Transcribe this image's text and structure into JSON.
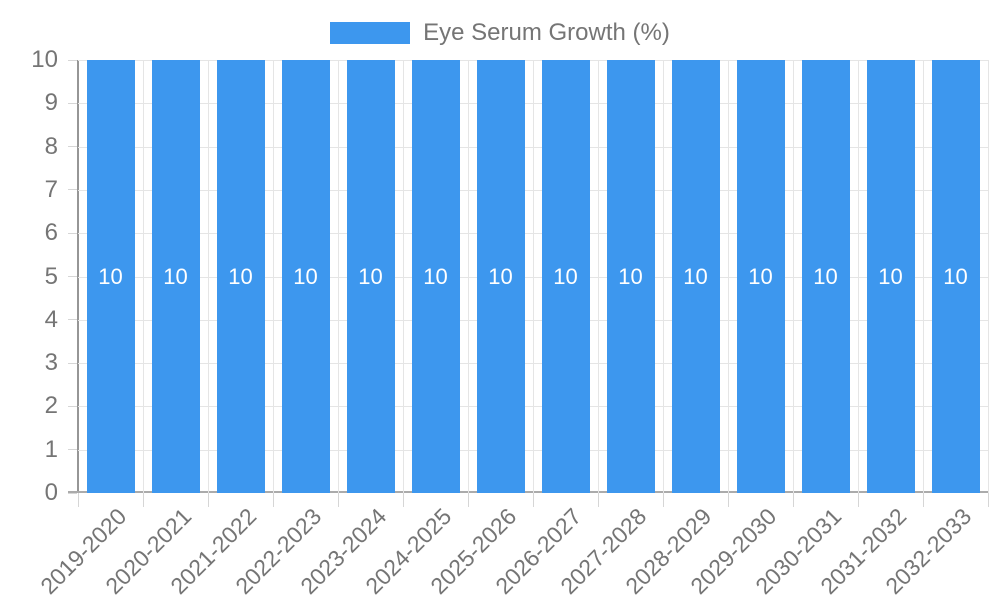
{
  "legend": {
    "label": "Eye Serum Growth (%)"
  },
  "chart_data": {
    "type": "bar",
    "title": "Eye Serum Growth (%)",
    "categories": [
      "2019-2020",
      "2020-2021",
      "2021-2022",
      "2022-2023",
      "2023-2024",
      "2024-2025",
      "2025-2026",
      "2026-2027",
      "2027-2028",
      "2028-2029",
      "2029-2030",
      "2030-2031",
      "2031-2032",
      "2032-2033"
    ],
    "series": [
      {
        "name": "Eye Serum Growth (%)",
        "values": [
          10,
          10,
          10,
          10,
          10,
          10,
          10,
          10,
          10,
          10,
          10,
          10,
          10,
          10
        ]
      }
    ],
    "value_labels_shown": true,
    "xlabel": "",
    "ylabel": "",
    "ylim": [
      0,
      10
    ],
    "ytick_step": 1,
    "yticks": [
      0,
      1,
      2,
      3,
      4,
      5,
      6,
      7,
      8,
      9,
      10
    ],
    "grid": true,
    "legend_position": "top-center",
    "colors": {
      "bar": "#3d97ee",
      "bar_value_text": "#ffffff",
      "axis_text": "#757575",
      "gridline": "#e5e5e5",
      "tick": "#d6d6d6",
      "y_axis_line": "#969696",
      "x_axis_line": "#ababab"
    }
  }
}
